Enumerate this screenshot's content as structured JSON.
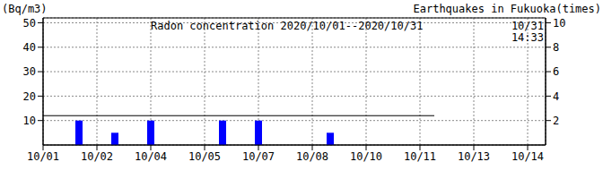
{
  "chart_data": {
    "type": "combo",
    "title": "Radon concentration 2020/10/01--2020/10/31",
    "y_label": "(Bq/m3)",
    "y2_label": "Earthquakes in Fukuoka(times)",
    "annotations": [
      "10/31",
      "14:33"
    ],
    "xlim": [
      1,
      15
    ],
    "xticks": [
      {
        "value": 1,
        "label": "10/01"
      },
      {
        "value": 2.5,
        "label": "10/02"
      },
      {
        "value": 4,
        "label": "10/04"
      },
      {
        "value": 5.5,
        "label": "10/05"
      },
      {
        "value": 7,
        "label": "10/07"
      },
      {
        "value": 8.5,
        "label": "10/08"
      },
      {
        "value": 10,
        "label": "10/10"
      },
      {
        "value": 11.5,
        "label": "10/11"
      },
      {
        "value": 13,
        "label": "10/13"
      },
      {
        "value": 14.5,
        "label": "10/14"
      }
    ],
    "ylim": [
      0,
      52
    ],
    "yticks": [
      10,
      20,
      30,
      40,
      50
    ],
    "y2lim": [
      0,
      10.4
    ],
    "y2ticks": [
      2,
      4,
      6,
      8,
      10
    ],
    "grid": true,
    "series": [
      {
        "type": "line",
        "color": "#000000",
        "x": [
          1,
          11.9
        ],
        "values": [
          12,
          12
        ]
      },
      {
        "type": "bar",
        "color": "#0000ff",
        "axis": "y2",
        "x": [
          2,
          3,
          4,
          6,
          7,
          9
        ],
        "values": [
          2,
          1,
          2,
          2,
          2,
          1
        ]
      }
    ]
  }
}
